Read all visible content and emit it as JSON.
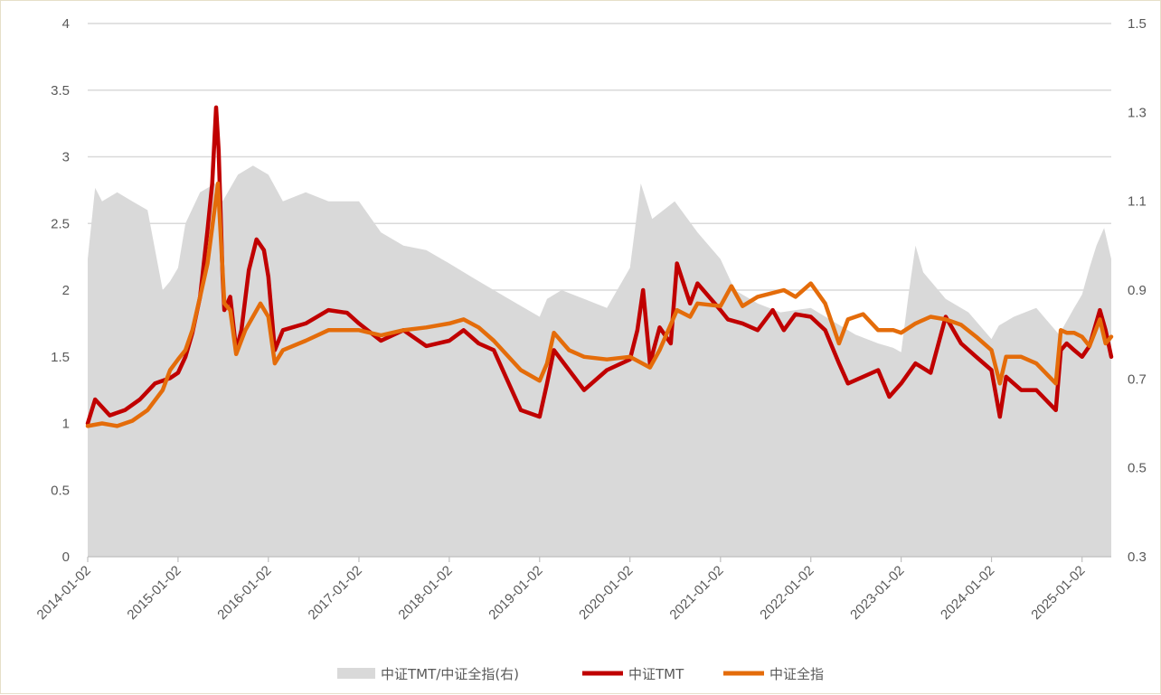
{
  "chart_data": {
    "type": "line",
    "title": "",
    "xlabel": "",
    "ylabel": "",
    "ylim": [
      0,
      4
    ],
    "y2lim": [
      0.3,
      1.5
    ],
    "y_ticks": [
      "0",
      "0.5",
      "1",
      "1.5",
      "2",
      "2.5",
      "3",
      "3.5",
      "4"
    ],
    "y2_ticks": [
      "0.3",
      "0.5",
      "0.7",
      "0.9",
      "1.1",
      "1.3",
      "1.5"
    ],
    "x_range": [
      "2014-01-02",
      "2025-04-30"
    ],
    "x_ticks": [
      "2014-01-02",
      "2015-01-02",
      "2016-01-02",
      "2017-01-02",
      "2018-01-02",
      "2019-01-02",
      "2020-01-02",
      "2021-01-02",
      "2022-01-02",
      "2023-01-02",
      "2024-01-02",
      "2025-01-02"
    ],
    "grid": "horizontal",
    "legend_position": "bottom-center",
    "series": [
      {
        "name": "中证TMT/中证全指(右)",
        "type": "area",
        "axis": "right",
        "color": "#d9d9d9",
        "x": [
          "2014-01-02",
          "2014-02-01",
          "2014-03-01",
          "2014-05-01",
          "2014-07-01",
          "2014-09-01",
          "2014-11-01",
          "2014-12-01",
          "2015-01-02",
          "2015-02-01",
          "2015-04-01",
          "2015-06-01",
          "2015-07-01",
          "2015-09-01",
          "2015-11-01",
          "2016-01-02",
          "2016-03-01",
          "2016-06-01",
          "2016-09-01",
          "2017-01-02",
          "2017-04-01",
          "2017-07-01",
          "2017-10-01",
          "2018-01-02",
          "2018-04-01",
          "2018-07-01",
          "2018-10-01",
          "2019-01-02",
          "2019-02-01",
          "2019-04-01",
          "2019-07-01",
          "2019-10-01",
          "2020-01-02",
          "2020-02-15",
          "2020-04-01",
          "2020-07-01",
          "2020-10-01",
          "2021-01-02",
          "2021-03-01",
          "2021-06-01",
          "2021-09-01",
          "2022-01-02",
          "2022-04-01",
          "2022-07-01",
          "2022-10-01",
          "2022-12-01",
          "2023-01-02",
          "2023-02-01",
          "2023-03-01",
          "2023-04-01",
          "2023-07-01",
          "2023-10-01",
          "2024-01-02",
          "2024-02-01",
          "2024-04-01",
          "2024-07-01",
          "2024-10-01",
          "2024-12-01",
          "2025-01-02",
          "2025-02-01",
          "2025-03-01",
          "2025-04-01",
          "2025-04-30"
        ],
        "values": [
          0.97,
          1.13,
          1.1,
          1.12,
          1.1,
          1.08,
          0.9,
          0.92,
          0.95,
          1.05,
          1.12,
          1.14,
          1.1,
          1.16,
          1.18,
          1.16,
          1.1,
          1.12,
          1.1,
          1.1,
          1.03,
          1.0,
          0.99,
          0.96,
          0.93,
          0.9,
          0.87,
          0.84,
          0.88,
          0.9,
          0.88,
          0.86,
          0.95,
          1.14,
          1.06,
          1.1,
          1.03,
          0.97,
          0.9,
          0.87,
          0.85,
          0.86,
          0.83,
          0.8,
          0.78,
          0.77,
          0.76,
          0.89,
          1.0,
          0.94,
          0.88,
          0.85,
          0.79,
          0.82,
          0.84,
          0.86,
          0.8,
          0.86,
          0.89,
          0.95,
          1.0,
          1.04,
          0.97
        ]
      },
      {
        "name": "中证TMT",
        "type": "line",
        "axis": "left",
        "color": "#c00000",
        "x": [
          "2014-01-02",
          "2014-02-01",
          "2014-04-01",
          "2014-06-01",
          "2014-08-01",
          "2014-10-01",
          "2014-12-01",
          "2015-01-02",
          "2015-02-01",
          "2015-03-01",
          "2015-04-01",
          "2015-05-01",
          "2015-05-20",
          "2015-06-05",
          "2015-06-15",
          "2015-07-01",
          "2015-07-08",
          "2015-08-01",
          "2015-08-25",
          "2015-09-15",
          "2015-10-15",
          "2015-11-15",
          "2015-12-15",
          "2016-01-02",
          "2016-01-28",
          "2016-03-01",
          "2016-06-01",
          "2016-09-01",
          "2016-11-15",
          "2017-01-02",
          "2017-04-01",
          "2017-07-01",
          "2017-10-01",
          "2018-01-02",
          "2018-03-01",
          "2018-05-01",
          "2018-07-01",
          "2018-10-18",
          "2019-01-02",
          "2019-02-01",
          "2019-03-01",
          "2019-05-01",
          "2019-07-01",
          "2019-10-01",
          "2020-01-02",
          "2020-02-01",
          "2020-02-24",
          "2020-03-23",
          "2020-05-01",
          "2020-06-15",
          "2020-07-10",
          "2020-09-01",
          "2020-10-01",
          "2021-01-02",
          "2021-02-01",
          "2021-04-01",
          "2021-06-01",
          "2021-08-01",
          "2021-09-15",
          "2021-11-01",
          "2022-01-02",
          "2022-03-01",
          "2022-04-26",
          "2022-06-01",
          "2022-08-01",
          "2022-10-01",
          "2022-11-15",
          "2023-01-02",
          "2023-03-01",
          "2023-05-01",
          "2023-07-01",
          "2023-09-01",
          "2023-11-01",
          "2024-01-02",
          "2024-02-05",
          "2024-03-01",
          "2024-05-01",
          "2024-07-01",
          "2024-09-18",
          "2024-10-08",
          "2024-11-01",
          "2024-12-01",
          "2025-01-02",
          "2025-02-01",
          "2025-03-15",
          "2025-04-07",
          "2025-04-30"
        ],
        "values": [
          1.0,
          1.18,
          1.06,
          1.1,
          1.18,
          1.3,
          1.34,
          1.38,
          1.5,
          1.68,
          1.95,
          2.45,
          2.8,
          3.37,
          3.05,
          2.1,
          1.85,
          1.95,
          1.55,
          1.7,
          2.15,
          2.38,
          2.3,
          2.1,
          1.55,
          1.7,
          1.75,
          1.85,
          1.83,
          1.75,
          1.62,
          1.7,
          1.58,
          1.62,
          1.7,
          1.6,
          1.55,
          1.1,
          1.05,
          1.3,
          1.55,
          1.4,
          1.25,
          1.4,
          1.48,
          1.7,
          2.0,
          1.45,
          1.72,
          1.6,
          2.2,
          1.9,
          2.05,
          1.85,
          1.78,
          1.75,
          1.7,
          1.85,
          1.7,
          1.82,
          1.8,
          1.7,
          1.45,
          1.3,
          1.35,
          1.4,
          1.2,
          1.3,
          1.45,
          1.38,
          1.8,
          1.6,
          1.5,
          1.4,
          1.05,
          1.35,
          1.25,
          1.25,
          1.1,
          1.55,
          1.6,
          1.55,
          1.5,
          1.58,
          1.85,
          1.7,
          1.5
        ]
      },
      {
        "name": "中证全指",
        "type": "line",
        "axis": "left",
        "color": "#e46c0a",
        "x": [
          "2014-01-02",
          "2014-03-01",
          "2014-05-01",
          "2014-07-01",
          "2014-09-01",
          "2014-11-01",
          "2014-12-01",
          "2015-01-02",
          "2015-02-01",
          "2015-03-01",
          "2015-04-01",
          "2015-05-01",
          "2015-06-12",
          "2015-07-08",
          "2015-08-01",
          "2015-08-25",
          "2015-10-01",
          "2015-12-01",
          "2016-01-02",
          "2016-01-28",
          "2016-03-01",
          "2016-06-01",
          "2016-09-01",
          "2017-01-02",
          "2017-04-01",
          "2017-07-01",
          "2017-10-01",
          "2018-01-02",
          "2018-03-01",
          "2018-05-01",
          "2018-07-01",
          "2018-10-18",
          "2019-01-02",
          "2019-02-01",
          "2019-03-01",
          "2019-05-01",
          "2019-07-01",
          "2019-10-01",
          "2020-01-02",
          "2020-03-23",
          "2020-05-01",
          "2020-07-10",
          "2020-09-01",
          "2020-10-01",
          "2021-01-02",
          "2021-02-15",
          "2021-04-01",
          "2021-06-01",
          "2021-09-15",
          "2021-11-01",
          "2022-01-02",
          "2022-03-01",
          "2022-04-26",
          "2022-06-01",
          "2022-08-01",
          "2022-10-01",
          "2022-12-01",
          "2023-01-02",
          "2023-03-01",
          "2023-05-01",
          "2023-07-01",
          "2023-09-01",
          "2023-11-01",
          "2024-01-02",
          "2024-02-05",
          "2024-03-01",
          "2024-05-01",
          "2024-07-01",
          "2024-09-18",
          "2024-10-08",
          "2024-11-01",
          "2024-12-01",
          "2025-01-02",
          "2025-02-01",
          "2025-03-15",
          "2025-04-07",
          "2025-04-30"
        ],
        "values": [
          0.98,
          1.0,
          0.98,
          1.02,
          1.1,
          1.25,
          1.4,
          1.48,
          1.55,
          1.7,
          1.95,
          2.2,
          2.8,
          1.9,
          1.85,
          1.52,
          1.7,
          1.9,
          1.8,
          1.45,
          1.55,
          1.62,
          1.7,
          1.7,
          1.66,
          1.7,
          1.72,
          1.75,
          1.78,
          1.72,
          1.62,
          1.4,
          1.32,
          1.45,
          1.68,
          1.55,
          1.5,
          1.48,
          1.5,
          1.42,
          1.55,
          1.85,
          1.8,
          1.9,
          1.88,
          2.03,
          1.88,
          1.95,
          2.0,
          1.95,
          2.05,
          1.9,
          1.6,
          1.78,
          1.82,
          1.7,
          1.7,
          1.68,
          1.75,
          1.8,
          1.78,
          1.74,
          1.65,
          1.55,
          1.3,
          1.5,
          1.5,
          1.45,
          1.3,
          1.7,
          1.68,
          1.68,
          1.65,
          1.58,
          1.78,
          1.6,
          1.65
        ]
      }
    ]
  }
}
